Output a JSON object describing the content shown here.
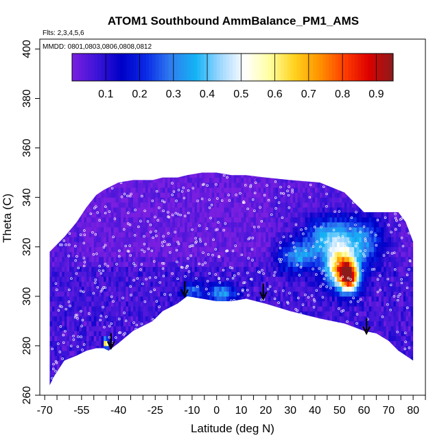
{
  "chart_data": {
    "type": "heatmap",
    "title": "ATOM1 Southbound AmmBalance_PM1_AMS",
    "subtitle_flights": "Flts: 2,3,4,5,6",
    "subtitle_dates": "MMDD: 0801,0803,0806,0808,0812",
    "xlabel": "Latitude (deg N)",
    "ylabel": "Theta (C)",
    "xlim": [
      -72,
      85
    ],
    "ylim": [
      260,
      404
    ],
    "x_ticks": [
      -70,
      -65,
      -60,
      -55,
      -50,
      -45,
      -40,
      -35,
      -30,
      -25,
      -20,
      -15,
      -10,
      -5,
      0,
      5,
      10,
      15,
      20,
      25,
      30,
      35,
      40,
      45,
      50,
      55,
      60,
      65,
      70,
      75,
      80,
      85
    ],
    "x_tick_labels": [
      "-70",
      "",
      "",
      "-55",
      "",
      "",
      "-40",
      "",
      "",
      "-25",
      "",
      "",
      "-10",
      "",
      "0",
      "",
      "10",
      "",
      "20",
      "",
      "30",
      "",
      "40",
      "",
      "50",
      "",
      "60",
      "",
      "70",
      "",
      "80",
      ""
    ],
    "y_ticks": [
      260,
      280,
      300,
      320,
      340,
      360,
      380,
      400
    ],
    "y_tick_labels": [
      "260",
      "280",
      "300",
      "320",
      "340",
      "360",
      "380",
      "400"
    ],
    "colorbar": {
      "range": [
        0,
        0.95
      ],
      "ticks": [
        0.1,
        0.2,
        0.3,
        0.4,
        0.5,
        0.6,
        0.7,
        0.8,
        0.9
      ],
      "tick_labels": [
        "0.1",
        "0.2",
        "0.3",
        "0.4",
        "0.5",
        "0.6",
        "0.7",
        "0.8",
        "0.9"
      ],
      "colors": [
        "#7a1fe0",
        "#3c14d8",
        "#0000c8",
        "#0a2ae6",
        "#2f7df0",
        "#13b3f5",
        "#9fd7ff",
        "#ffffff",
        "#ffffa0",
        "#ffd21e",
        "#ff9400",
        "#ff4000",
        "#dd0000",
        "#8b1c1c"
      ]
    },
    "heatmap_grid": {
      "x_range": [
        -68,
        80
      ],
      "y_range": [
        262,
        352
      ],
      "cell_width_deg": 1,
      "cell_height_theta": 2
    },
    "background_field": {
      "mean_value": 0.04,
      "low_values_upper_region": 0.02
    },
    "hotspots": [
      {
        "lat": 54,
        "theta": 308,
        "value": 0.72,
        "spread_lat": 4,
        "spread_theta": 6
      },
      {
        "lat": 50,
        "theta": 312,
        "value": 0.55,
        "spread_lat": 6,
        "spread_theta": 8
      },
      {
        "lat": 46,
        "theta": 324,
        "value": 0.33,
        "spread_lat": 10,
        "spread_theta": 8
      },
      {
        "lat": 33,
        "theta": 316,
        "value": 0.28,
        "spread_lat": 8,
        "spread_theta": 6
      },
      {
        "lat": 60,
        "theta": 322,
        "value": 0.25,
        "spread_lat": 8,
        "spread_theta": 10
      },
      {
        "lat": -45,
        "theta": 281,
        "value": 0.72,
        "spread_lat": 1,
        "spread_theta": 2
      },
      {
        "lat": 2,
        "theta": 301,
        "value": 0.28,
        "spread_lat": 6,
        "spread_theta": 4
      },
      {
        "lat": -10,
        "theta": 302,
        "value": 0.2,
        "spread_lat": 4,
        "spread_theta": 4
      }
    ],
    "boundary": {
      "lat": [
        -68,
        -66,
        -62,
        -57,
        -53,
        -49,
        -46,
        -44,
        -40,
        -34,
        -26,
        -22,
        -16,
        -12,
        -6,
        0,
        6,
        12,
        20,
        30,
        42,
        52,
        60,
        65,
        70,
        74,
        77,
        80
      ],
      "lower": [
        264,
        268,
        274,
        276,
        278,
        279,
        279,
        278,
        281,
        286,
        290,
        294,
        297,
        300,
        299,
        298,
        298,
        299,
        297,
        294,
        291,
        289,
        286,
        285,
        282,
        278,
        276,
        274
      ],
      "upper": [
        318,
        320,
        324,
        330,
        336,
        341,
        343,
        344,
        346,
        347,
        347,
        348,
        348,
        349,
        350,
        350,
        349,
        349,
        348,
        347,
        346,
        342,
        334,
        334,
        334,
        334,
        330,
        322
      ]
    },
    "arrows": [
      {
        "lat": -43,
        "theta": 279
      },
      {
        "lat": -13,
        "theta": 300
      },
      {
        "lat": 19,
        "theta": 299
      },
      {
        "lat": 61,
        "theta": 285
      }
    ],
    "grid": false,
    "legend": "top colorbar"
  }
}
